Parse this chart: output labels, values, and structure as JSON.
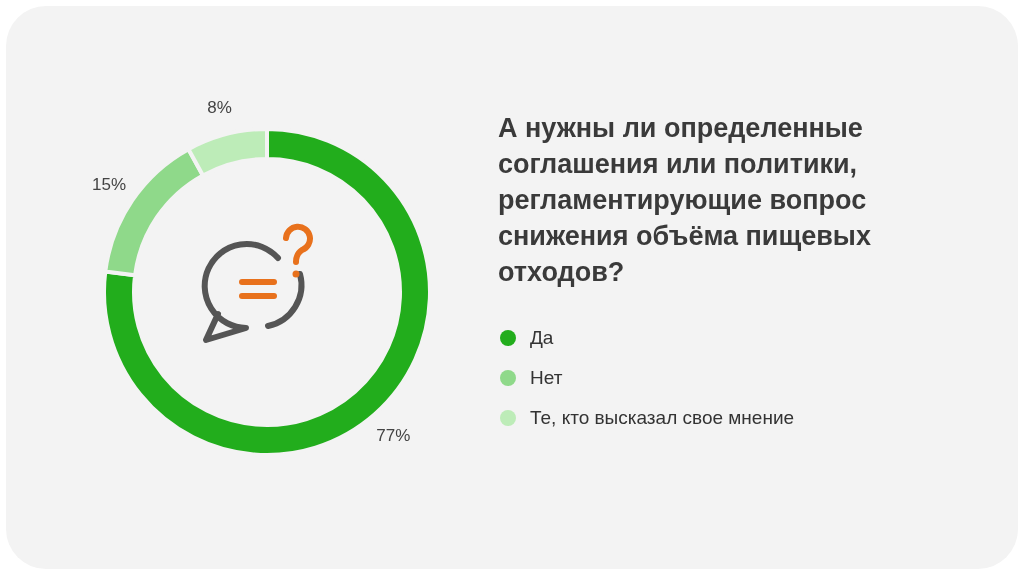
{
  "chart_data": {
    "type": "donut",
    "title": "А нужны ли определенные соглашения или политики, регламентирующие вопрос снижения объёма пищевых отходов?",
    "categories": [
      "Да",
      "Нет",
      "Те, кто высказал свое мнение"
    ],
    "values": [
      77,
      15,
      8
    ],
    "colors": [
      "#22ad1c",
      "#8fd98a",
      "#bdecb8"
    ],
    "value_labels": [
      "77%",
      "15%",
      "8%"
    ],
    "legend": "right"
  }
}
